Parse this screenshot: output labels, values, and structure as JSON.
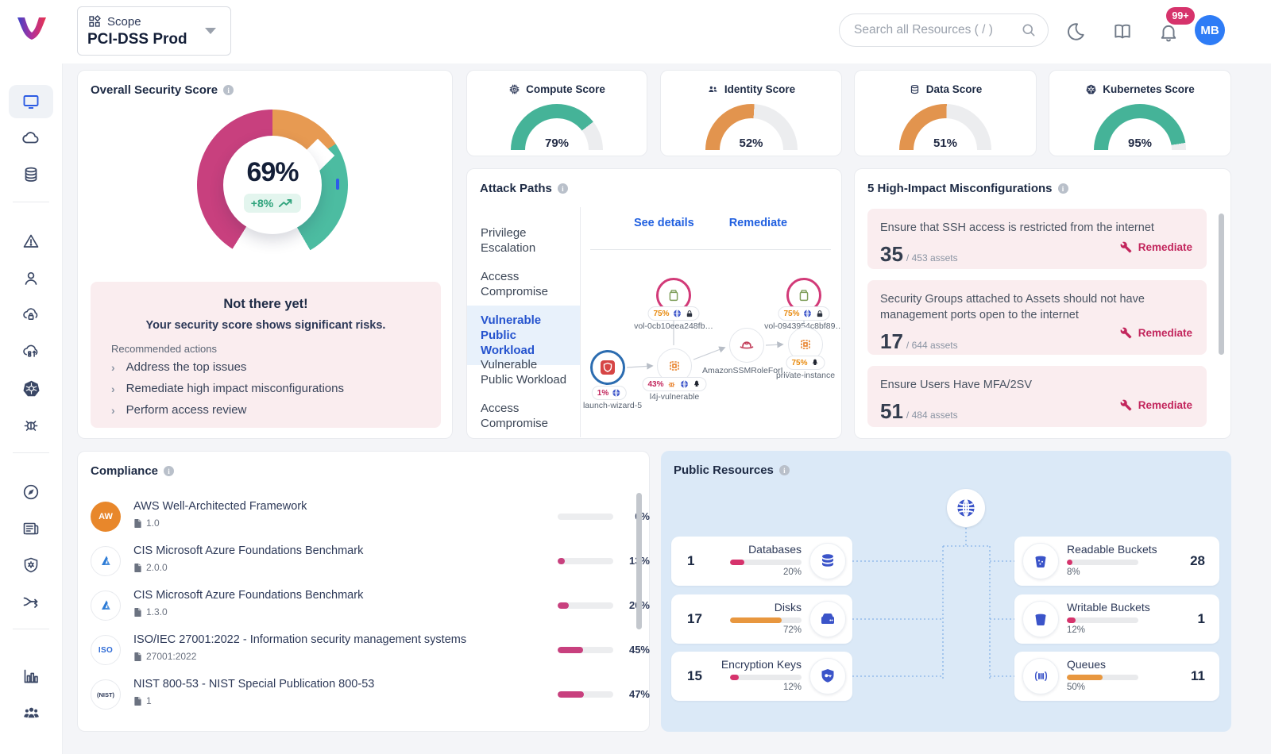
{
  "topbar": {
    "scope_label": "Scope",
    "scope_value": "PCI-DSS Prod",
    "search_placeholder": "Search all Resources ( / )",
    "notifications_badge": "99+",
    "avatar_initials": "MB"
  },
  "sidebar": {
    "icons": [
      "monitor",
      "cloud",
      "database",
      "warning",
      "user",
      "cloud-lock",
      "cloud-blocks",
      "kubernetes-wheel",
      "bug",
      "compass",
      "newspaper",
      "shield-gear",
      "shuffle",
      "bar-chart",
      "people"
    ]
  },
  "colors": {
    "pink": "#C8407E",
    "orange": "#E8973F",
    "teal": "#45B398",
    "accent_blue": "#2B5BE3",
    "badge_pink": "#D6336C",
    "avatar_blue": "#2E7CF6"
  },
  "overall": {
    "title": "Overall Security Score",
    "score": "69%",
    "delta": "+8%",
    "message_title": "Not there yet!",
    "message_subtitle": "Your security score shows significant risks.",
    "recommended_label": "Recommended actions",
    "actions": [
      "Address the top issues",
      "Remediate high impact misconfigurations",
      "Perform access review"
    ]
  },
  "scores": [
    {
      "label": "Compute Score",
      "display": "79%",
      "value": 79,
      "color": "#45B398"
    },
    {
      "label": "Identity Score",
      "display": "52%",
      "value": 52,
      "color": "#E2944E"
    },
    {
      "label": "Data Score",
      "display": "51%",
      "value": 51,
      "color": "#E2944E"
    },
    {
      "label": "Kubernetes Score",
      "display": "95%",
      "value": 95,
      "color": "#45B398"
    }
  ],
  "attack_paths": {
    "title": "Attack Paths",
    "items": [
      "Privilege Escalation",
      "Access Compromise",
      "Vulnerable Public Workload",
      "Vulnerable Public Workload",
      "Access Compromise"
    ],
    "selected_index": 2,
    "see_details": "See details",
    "remediate": "Remediate",
    "nodes": [
      {
        "label": "vol-0cb10eea248fb…",
        "percent": "75%",
        "badges": [
          "globe",
          "lock"
        ],
        "type": "volume"
      },
      {
        "label": "vol-0943954c8bf89…",
        "percent": "75%",
        "badges": [
          "globe",
          "lock"
        ],
        "type": "volume"
      },
      {
        "label": "launch-wizard-5",
        "percent": "1%",
        "badges": [
          "globe"
        ],
        "type": "shield"
      },
      {
        "label": "l4j-vulnerable",
        "percent": "43%",
        "badges": [
          "bug",
          "globe",
          "penguin"
        ],
        "type": "chip"
      },
      {
        "label": "AmazonSSMRoleForI…",
        "badges": [],
        "type": "role-hat"
      },
      {
        "label": "private-instance",
        "percent": "75%",
        "badges": [
          "penguin"
        ],
        "type": "chip"
      }
    ]
  },
  "misconfigurations": {
    "title": "5 High-Impact Misconfigurations",
    "items": [
      {
        "title": "Ensure that SSH access is restricted from the internet",
        "count": "35",
        "total": "/ 453 assets",
        "action": "Remediate"
      },
      {
        "title": "Security Groups attached to Assets should not have management ports open to the internet",
        "count": "17",
        "total": "/ 644 assets",
        "action": "Remediate"
      },
      {
        "title": "Ensure Users Have MFA/2SV",
        "count": "51",
        "total": "/ 484 assets",
        "action": "Remediate"
      }
    ]
  },
  "compliance": {
    "title": "Compliance",
    "items": [
      {
        "badge": "AW",
        "name": "AWS Well-Architected Framework",
        "version": "1.0",
        "percent": "0%",
        "value": 0,
        "color": "#C8407E"
      },
      {
        "badge": "azure",
        "name": "CIS Microsoft Azure Foundations Benchmark",
        "version": "2.0.0",
        "percent": "13%",
        "value": 13,
        "color": "#C8407E"
      },
      {
        "badge": "azure",
        "name": "CIS Microsoft Azure Foundations Benchmark",
        "version": "1.3.0",
        "percent": "20%",
        "value": 20,
        "color": "#C8407E"
      },
      {
        "badge": "ISO",
        "name": "ISO/IEC 27001:2022 - Information security management systems",
        "version": "27001:2022",
        "percent": "45%",
        "value": 45,
        "color": "#C8407E"
      },
      {
        "badge": "(NIST)",
        "name": "NIST 800-53 - NIST Special Publication 800-53",
        "version": "1",
        "percent": "47%",
        "value": 47,
        "color": "#C8407E"
      }
    ]
  },
  "public_resources": {
    "title": "Public Resources",
    "left": [
      {
        "count": "1",
        "label": "Databases",
        "percent": "20%",
        "value": 20,
        "color": "#D6336C",
        "icon": "database"
      },
      {
        "count": "17",
        "label": "Disks",
        "percent": "72%",
        "value": 72,
        "color": "#E8973F",
        "icon": "disk"
      },
      {
        "count": "15",
        "label": "Encryption Keys",
        "percent": "12%",
        "value": 12,
        "color": "#D6336C",
        "icon": "key-shield"
      }
    ],
    "right": [
      {
        "count": "28",
        "label": "Readable Buckets",
        "percent": "8%",
        "value": 8,
        "color": "#D6336C",
        "icon": "bucket-readable"
      },
      {
        "count": "1",
        "label": "Writable Buckets",
        "percent": "12%",
        "value": 12,
        "color": "#D6336C",
        "icon": "bucket"
      },
      {
        "count": "11",
        "label": "Queues",
        "percent": "50%",
        "value": 50,
        "color": "#E8973F",
        "icon": "queue"
      }
    ]
  }
}
